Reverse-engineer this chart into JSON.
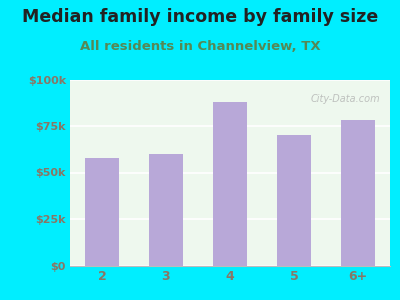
{
  "title": "Median family income by family size",
  "subtitle": "All residents in Channelview, TX",
  "categories": [
    "2",
    "3",
    "4",
    "5",
    "6+"
  ],
  "values": [
    58000,
    60000,
    88000,
    70000,
    78000
  ],
  "bar_color": "#b8a8d8",
  "background_outer": "#00eeff",
  "background_inner": "#eef8ee",
  "title_color": "#222222",
  "subtitle_color": "#558855",
  "tick_color": "#887766",
  "ylim": [
    0,
    100000
  ],
  "yticks": [
    0,
    25000,
    50000,
    75000,
    100000
  ],
  "ytick_labels": [
    "$0",
    "$25k",
    "$50k",
    "$75k",
    "$100k"
  ],
  "watermark": "City-Data.com",
  "title_fontsize": 12.5,
  "subtitle_fontsize": 9.5
}
